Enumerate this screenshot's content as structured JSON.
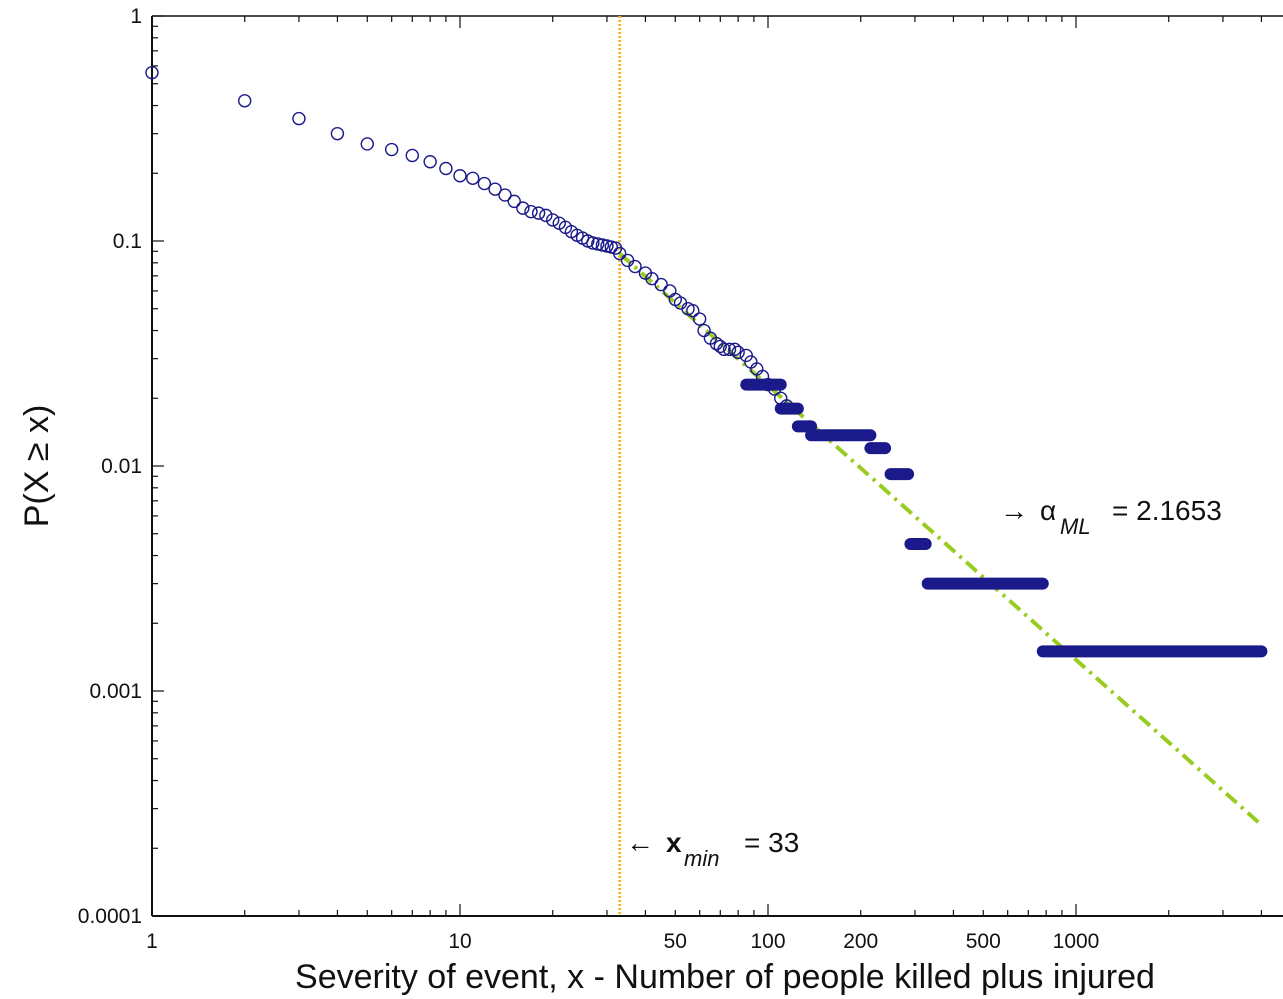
{
  "chart_data": {
    "type": "scatter",
    "title": "",
    "xlabel": "Severity of event, x - Number of people killed plus injured",
    "ylabel": "P(X ≥ x)",
    "xscale": "log",
    "yscale": "log",
    "xlim": [
      1,
      4000
    ],
    "ylim": [
      0.0001,
      1
    ],
    "x_tick_labels": [
      "1",
      "10",
      "50",
      "100",
      "200",
      "500",
      "1000"
    ],
    "y_tick_labels": [
      "1",
      "0.1",
      "0.01",
      "0.001",
      "0.0001"
    ],
    "grid": false,
    "colors": {
      "markers": "#1a1a8a",
      "fit_line": "#99cc22",
      "xmin_line": "#f2b632"
    },
    "series": [
      {
        "marker": "open-circle",
        "x": [
          1,
          2,
          3,
          4,
          5,
          6,
          7,
          8,
          9,
          10,
          11,
          12,
          13,
          14,
          15,
          16,
          17,
          18,
          19,
          20,
          21,
          22,
          23,
          24,
          25,
          26,
          27,
          28,
          29,
          30,
          31,
          32
        ],
        "y": [
          0.56,
          0.42,
          0.35,
          0.3,
          0.27,
          0.255,
          0.24,
          0.225,
          0.21,
          0.195,
          0.19,
          0.18,
          0.17,
          0.16,
          0.15,
          0.14,
          0.135,
          0.133,
          0.13,
          0.124,
          0.12,
          0.115,
          0.11,
          0.106,
          0.103,
          0.1,
          0.098,
          0.097,
          0.096,
          0.095,
          0.094,
          0.093
        ]
      },
      {
        "marker": "open-circle",
        "x": [
          33,
          35,
          37,
          40,
          42,
          45,
          48,
          50,
          52,
          55,
          57,
          60,
          62,
          65,
          68,
          70,
          72,
          75,
          78,
          80,
          85,
          88,
          92,
          96,
          100,
          105,
          110,
          115
        ],
        "y": [
          0.088,
          0.082,
          0.077,
          0.072,
          0.068,
          0.064,
          0.06,
          0.055,
          0.053,
          0.05,
          0.049,
          0.045,
          0.04,
          0.037,
          0.035,
          0.034,
          0.033,
          0.033,
          0.033,
          0.032,
          0.031,
          0.029,
          0.027,
          0.025,
          0.023,
          0.022,
          0.02,
          0.0185
        ]
      },
      {
        "marker": "filled-steps",
        "segments": [
          {
            "x1": 85,
            "x2": 110,
            "y": 0.023
          },
          {
            "x1": 110,
            "x2": 125,
            "y": 0.018
          },
          {
            "x1": 125,
            "x2": 138,
            "y": 0.015
          },
          {
            "x1": 138,
            "x2": 215,
            "y": 0.0137
          },
          {
            "x1": 215,
            "x2": 240,
            "y": 0.012
          },
          {
            "x1": 250,
            "x2": 285,
            "y": 0.0092
          },
          {
            "x1": 290,
            "x2": 325,
            "y": 0.0045
          },
          {
            "x1": 330,
            "x2": 780,
            "y": 0.003
          },
          {
            "x1": 780,
            "x2": 4000,
            "y": 0.0015
          }
        ]
      }
    ],
    "fit_line": {
      "style": "dash-dot",
      "x": [
        33,
        4000
      ],
      "y": [
        0.088,
        0.000254
      ]
    },
    "xmin_line": {
      "style": "dotted",
      "x": 33
    },
    "annotations": [
      {
        "arrow": "→",
        "symbol": "α",
        "subscript": "ML",
        "value_text": "= 2.1653"
      },
      {
        "arrow": "←",
        "symbol": "x",
        "subscript": "min",
        "value_text": "= 33"
      }
    ]
  }
}
